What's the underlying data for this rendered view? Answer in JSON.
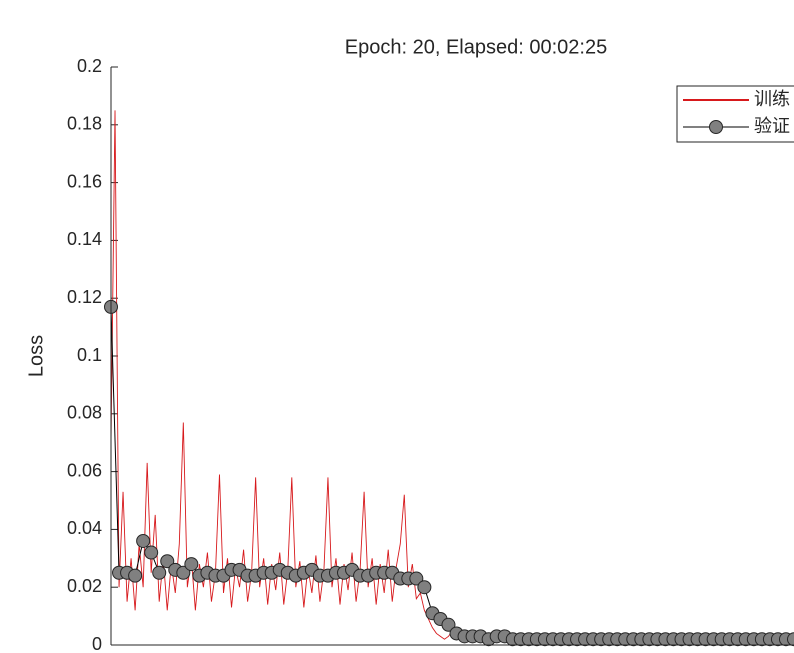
{
  "chart_data": {
    "type": "line",
    "title": "Epoch: 20, Elapsed: 00:02:25",
    "ylabel": "Loss",
    "ylim": [
      0,
      0.2
    ],
    "yticks": [
      0,
      0.02,
      0.04,
      0.06,
      0.08,
      0.1,
      0.12,
      0.14,
      0.16,
      0.18,
      0.2
    ],
    "xlim": [
      0,
      340
    ],
    "legend": "northeast",
    "series": [
      {
        "name": "训练",
        "color": "#d7191c",
        "marker": false,
        "x": [
          0,
          2,
          4,
          6,
          8,
          10,
          12,
          14,
          16,
          18,
          20,
          22,
          24,
          26,
          28,
          30,
          32,
          34,
          36,
          38,
          40,
          42,
          44,
          46,
          48,
          50,
          52,
          54,
          56,
          58,
          60,
          62,
          64,
          66,
          68,
          70,
          72,
          74,
          76,
          78,
          80,
          82,
          84,
          86,
          88,
          90,
          92,
          94,
          96,
          98,
          100,
          102,
          104,
          106,
          108,
          110,
          112,
          114,
          116,
          118,
          120,
          122,
          124,
          126,
          128,
          130,
          132,
          134,
          136,
          138,
          140,
          142,
          144,
          146,
          148,
          150,
          152,
          154,
          156,
          158,
          160,
          162,
          164,
          166,
          168,
          170,
          172,
          174,
          176,
          178,
          180,
          182,
          184,
          186,
          188,
          190,
          192,
          194,
          196,
          198,
          200,
          202,
          204,
          206,
          208,
          210,
          212,
          214,
          216,
          218,
          220,
          222,
          224,
          226,
          228,
          230,
          232,
          234,
          236,
          238,
          240,
          242,
          244,
          246,
          248,
          250,
          252,
          254,
          256,
          258,
          260,
          262,
          264,
          266,
          268,
          270,
          272,
          274,
          276,
          278,
          280,
          282,
          284,
          286,
          288,
          290,
          292,
          294,
          296,
          298,
          300,
          302,
          304,
          306,
          308,
          310,
          312,
          314,
          316,
          318,
          320,
          322,
          324,
          326,
          328,
          330,
          332,
          334,
          336,
          338,
          340
        ],
        "values": [
          0.07,
          0.185,
          0.02,
          0.053,
          0.015,
          0.03,
          0.012,
          0.035,
          0.02,
          0.063,
          0.025,
          0.045,
          0.015,
          0.03,
          0.012,
          0.028,
          0.018,
          0.035,
          0.077,
          0.02,
          0.03,
          0.012,
          0.028,
          0.02,
          0.032,
          0.015,
          0.025,
          0.059,
          0.018,
          0.03,
          0.013,
          0.027,
          0.02,
          0.033,
          0.015,
          0.025,
          0.058,
          0.02,
          0.03,
          0.014,
          0.028,
          0.019,
          0.032,
          0.014,
          0.026,
          0.058,
          0.02,
          0.029,
          0.013,
          0.027,
          0.018,
          0.031,
          0.015,
          0.026,
          0.058,
          0.02,
          0.03,
          0.014,
          0.028,
          0.019,
          0.032,
          0.015,
          0.026,
          0.053,
          0.02,
          0.03,
          0.014,
          0.028,
          0.018,
          0.033,
          0.015,
          0.027,
          0.035,
          0.052,
          0.02,
          0.028,
          0.016,
          0.018,
          0.012,
          0.009,
          0.006,
          0.004,
          0.003,
          0.002,
          0.003,
          0.005,
          0.002,
          0.003,
          0.002,
          0.004,
          0.002,
          0.003,
          0.002,
          0.003,
          0.002,
          0.003,
          0.002,
          0.003,
          0.002,
          0.003,
          0.002,
          0.003,
          0.002,
          0.003,
          0.002,
          0.003,
          0.002,
          0.003,
          0.002,
          0.003,
          0.002,
          0.003,
          0.002,
          0.003,
          0.002,
          0.003,
          0.002,
          0.003,
          0.002,
          0.003,
          0.002,
          0.003,
          0.002,
          0.003,
          0.002,
          0.003,
          0.002,
          0.003,
          0.002,
          0.003,
          0.002,
          0.003,
          0.002,
          0.003,
          0.002,
          0.003,
          0.002,
          0.003,
          0.002,
          0.003,
          0.002,
          0.003,
          0.002,
          0.003,
          0.002,
          0.003,
          0.002,
          0.003,
          0.002,
          0.003,
          0.002,
          0.003,
          0.002,
          0.003,
          0.002,
          0.003,
          0.002,
          0.003,
          0.002,
          0.003,
          0.002,
          0.003,
          0.002,
          0.003,
          0.002,
          0.003,
          0.002,
          0.003,
          0.002,
          0.003,
          0.002
        ]
      },
      {
        "name": "验证",
        "color": "#000000",
        "marker": true,
        "marker_color": "#808080",
        "x": [
          0,
          4,
          8,
          12,
          16,
          20,
          24,
          28,
          32,
          36,
          40,
          44,
          48,
          52,
          56,
          60,
          64,
          68,
          72,
          76,
          80,
          84,
          88,
          92,
          96,
          100,
          104,
          108,
          112,
          116,
          120,
          124,
          128,
          132,
          136,
          140,
          144,
          148,
          152,
          156,
          160,
          164,
          168,
          172,
          176,
          180,
          184,
          188,
          192,
          196,
          200,
          204,
          208,
          212,
          216,
          220,
          224,
          228,
          232,
          236,
          240,
          244,
          248,
          252,
          256,
          260,
          264,
          268,
          272,
          276,
          280,
          284,
          288,
          292,
          296,
          300,
          304,
          308,
          312,
          316,
          320,
          324,
          328,
          332,
          336,
          340
        ],
        "values": [
          0.117,
          0.025,
          0.025,
          0.024,
          0.036,
          0.032,
          0.025,
          0.029,
          0.026,
          0.025,
          0.028,
          0.024,
          0.025,
          0.024,
          0.024,
          0.026,
          0.026,
          0.024,
          0.024,
          0.025,
          0.025,
          0.026,
          0.025,
          0.024,
          0.025,
          0.026,
          0.024,
          0.024,
          0.025,
          0.025,
          0.026,
          0.024,
          0.024,
          0.025,
          0.025,
          0.025,
          0.023,
          0.023,
          0.023,
          0.02,
          0.011,
          0.009,
          0.007,
          0.004,
          0.003,
          0.003,
          0.003,
          0.002,
          0.003,
          0.003,
          0.002,
          0.002,
          0.002,
          0.002,
          0.002,
          0.002,
          0.002,
          0.002,
          0.002,
          0.002,
          0.002,
          0.002,
          0.002,
          0.002,
          0.002,
          0.002,
          0.002,
          0.002,
          0.002,
          0.002,
          0.002,
          0.002,
          0.002,
          0.002,
          0.002,
          0.002,
          0.002,
          0.002,
          0.002,
          0.002,
          0.002,
          0.002,
          0.002,
          0.002,
          0.002,
          0.002
        ]
      }
    ]
  }
}
